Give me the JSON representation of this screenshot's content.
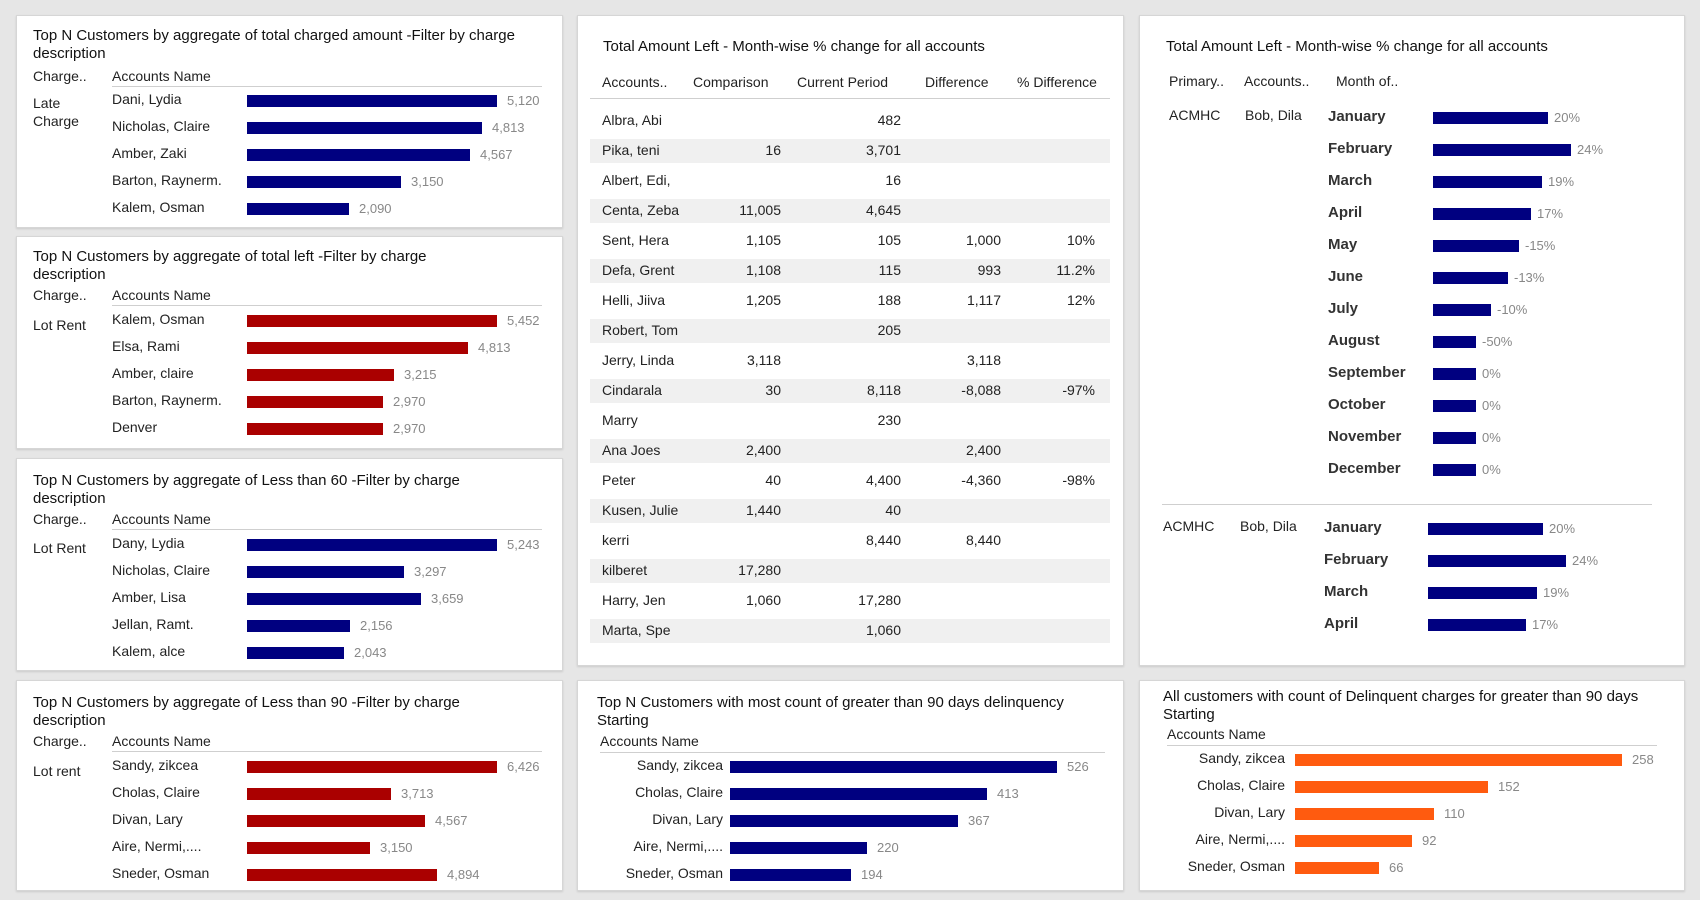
{
  "colors": {
    "navy": "#000080",
    "red": "#aa0000",
    "orange": "#ff5b0f"
  },
  "p1": {
    "title": "Top N Customers by aggregate of total charged amount -Filter by charge description",
    "col1": "Charge..",
    "col2": "Accounts Name",
    "category": "Late Charge",
    "color": "navy",
    "rows": [
      {
        "name": "Dani, Lydia",
        "value": "5,120",
        "v": 5120
      },
      {
        "name": "Nicholas, Claire",
        "value": "4,813",
        "v": 4813
      },
      {
        "name": "Amber, Zaki",
        "value": "4,567",
        "v": 4567
      },
      {
        "name": "Barton, Raynerm.",
        "value": "3,150",
        "v": 3150
      },
      {
        "name": "Kalem, Osman",
        "value": "2,090",
        "v": 2090
      }
    ]
  },
  "p2": {
    "title": "Top N Customers by aggregate of total left -Filter by charge description",
    "col1": "Charge..",
    "col2": "Accounts Name",
    "category": "Lot Rent",
    "color": "red",
    "rows": [
      {
        "name": "Kalem, Osman",
        "value": "5,452",
        "v": 5452
      },
      {
        "name": "Elsa, Rami",
        "value": "4,813",
        "v": 4813
      },
      {
        "name": "Amber, claire",
        "value": "3,215",
        "v": 3215
      },
      {
        "name": "Barton, Raynerm.",
        "value": "2,970",
        "v": 2970
      },
      {
        "name": "Denver",
        "value": "2,970",
        "v": 2970
      }
    ]
  },
  "p3": {
    "title": "Top N Customers by aggregate of Less than 60 -Filter by charge description",
    "col1": "Charge..",
    "col2": "Accounts Name",
    "category": "Lot Rent",
    "color": "navy",
    "rows": [
      {
        "name": "Dany, Lydia",
        "value": "5,243",
        "v": 5243
      },
      {
        "name": "Nicholas, Claire",
        "value": "3,297",
        "v": 3297
      },
      {
        "name": "Amber, Lisa",
        "value": "3,659",
        "v": 3659
      },
      {
        "name": "Jellan, Ramt.",
        "value": "2,156",
        "v": 2156
      },
      {
        "name": "Kalem, alce",
        "value": "2,043",
        "v": 2043
      }
    ]
  },
  "p4": {
    "title": "Top N Customers by aggregate of Less than 90 -Filter by charge description",
    "col1": "Charge..",
    "col2": "Accounts Name",
    "category": "Lot rent",
    "color": "red",
    "rows": [
      {
        "name": "Sandy, zikcea",
        "value": "6,426",
        "v": 6426
      },
      {
        "name": "Cholas, Claire",
        "value": "3,713",
        "v": 3713
      },
      {
        "name": "Divan, Lary",
        "value": "4,567",
        "v": 4567
      },
      {
        "name": "Aire, Nermi,....",
        "value": "3,150",
        "v": 3150
      },
      {
        "name": "Sneder, Osman",
        "value": "4,894",
        "v": 4894
      }
    ]
  },
  "table": {
    "title": "Total Amount Left - Month-wise % change for all accounts",
    "headers": [
      "Accounts..",
      "Comparison",
      "Current Period",
      "Difference",
      "% Difference"
    ],
    "rows": [
      [
        "Albra, Abi",
        "",
        "482",
        "",
        ""
      ],
      [
        "Pika, teni",
        "16",
        "3,701",
        "",
        ""
      ],
      [
        "Albert, Edi,",
        "",
        "16",
        "",
        ""
      ],
      [
        "Centa, Zeba",
        "11,005",
        "4,645",
        "",
        ""
      ],
      [
        "Sent, Hera",
        "1,105",
        "105",
        "1,000",
        "10%"
      ],
      [
        "Defa, Grent",
        "1,108",
        "115",
        "993",
        "11.2%"
      ],
      [
        "Helli, Jiiva",
        "1,205",
        "188",
        "1,117",
        "12%"
      ],
      [
        "Robert, Tom",
        "",
        "205",
        "",
        ""
      ],
      [
        "Jerry, Linda",
        "3,118",
        "",
        "3,118",
        ""
      ],
      [
        "Cindarala",
        "30",
        "8,118",
        "-8,088",
        "-97%"
      ],
      [
        "Marry",
        "",
        "230",
        "",
        ""
      ],
      [
        "Ana Joes",
        "2,400",
        "",
        "2,400",
        ""
      ],
      [
        "Peter",
        "40",
        "4,400",
        "-4,360",
        "-98%"
      ],
      [
        "Kusen, Julie",
        "1,440",
        "40",
        "",
        ""
      ],
      [
        "kerri",
        "",
        "8,440",
        "8,440",
        ""
      ],
      [
        "kilberet",
        "17,280",
        "",
        "",
        ""
      ],
      [
        "Harry, Jen",
        "1,060",
        "17,280",
        "",
        ""
      ],
      [
        "Marta, Spe",
        "",
        "1,060",
        "",
        ""
      ]
    ]
  },
  "monthly": {
    "title": "Total Amount Left - Month-wise % change for all accounts",
    "col1": "Primary..",
    "col2": "Accounts..",
    "col3": "Month of..",
    "group1": {
      "primary": "ACMHC",
      "account": "Bob, Dila",
      "rows": [
        {
          "month": "January",
          "label": "20%",
          "pct": 20
        },
        {
          "month": "February",
          "label": "24%",
          "pct": 24
        },
        {
          "month": "March",
          "label": "19%",
          "pct": 19
        },
        {
          "month": "April",
          "label": "17%",
          "pct": 17
        },
        {
          "month": "May",
          "label": "-15%",
          "pct": -15
        },
        {
          "month": "June",
          "label": "-13%",
          "pct": -13
        },
        {
          "month": "July",
          "label": "-10%",
          "pct": -10
        },
        {
          "month": "August",
          "label": "-50%",
          "pct": -50
        },
        {
          "month": "September",
          "label": "0%",
          "pct": 0
        },
        {
          "month": "October",
          "label": "0%",
          "pct": 0
        },
        {
          "month": "November",
          "label": "0%",
          "pct": 0
        },
        {
          "month": "December",
          "label": "0%",
          "pct": 0
        }
      ]
    },
    "group2": {
      "primary": "ACMHC",
      "account": "Bob, Dila",
      "rows": [
        {
          "month": "January",
          "label": "20%",
          "pct": 20
        },
        {
          "month": "February",
          "label": "24%",
          "pct": 24
        },
        {
          "month": "March",
          "label": "19%",
          "pct": 19
        },
        {
          "month": "April",
          "label": "17%",
          "pct": 17
        }
      ]
    }
  },
  "p5": {
    "title": "Top N Customers with most count of greater than 90 days delinquency Starting",
    "col1": "Accounts Name",
    "color": "navy",
    "rows": [
      {
        "name": "Sandy, zikcea",
        "value": "526",
        "v": 526
      },
      {
        "name": "Cholas, Claire",
        "value": "413",
        "v": 413
      },
      {
        "name": "Divan, Lary",
        "value": "367",
        "v": 367
      },
      {
        "name": "Aire, Nermi,....",
        "value": "220",
        "v": 220
      },
      {
        "name": "Sneder, Osman",
        "value": "194",
        "v": 194
      }
    ]
  },
  "p6": {
    "title": "All customers  with count of  Delinquent  charges for greater than 90 days Starting",
    "col1": "Accounts Name",
    "color": "orange",
    "rows": [
      {
        "name": "Sandy, zikcea",
        "value": "258",
        "v": 258
      },
      {
        "name": "Cholas, Claire",
        "value": "152",
        "v": 152
      },
      {
        "name": "Divan, Lary",
        "value": "110",
        "v": 110
      },
      {
        "name": "Aire, Nermi,....",
        "value": "92",
        "v": 92
      },
      {
        "name": "Sneder, Osman",
        "value": "66",
        "v": 66
      }
    ]
  },
  "chart_data": [
    {
      "type": "bar",
      "title": "Top N Customers by aggregate of total charged amount -Filter by charge description",
      "categories": [
        "Dani, Lydia",
        "Nicholas, Claire",
        "Amber, Zaki",
        "Barton, Raynerm.",
        "Kalem, Osman"
      ],
      "values": [
        5120,
        4813,
        4567,
        3150,
        2090
      ]
    },
    {
      "type": "bar",
      "title": "Top N Customers by aggregate of total left -Filter by charge description",
      "categories": [
        "Kalem, Osman",
        "Elsa, Rami",
        "Amber, claire",
        "Barton, Raynerm.",
        "Denver"
      ],
      "values": [
        5452,
        4813,
        3215,
        2970,
        2970
      ]
    },
    {
      "type": "bar",
      "title": "Top N Customers by aggregate of Less than 60 -Filter by charge description",
      "categories": [
        "Dany, Lydia",
        "Nicholas, Claire",
        "Amber, Lisa",
        "Jellan, Ramt.",
        "Kalem, alce"
      ],
      "values": [
        5243,
        3297,
        3659,
        2156,
        2043
      ]
    },
    {
      "type": "bar",
      "title": "Top N Customers by aggregate of Less than 90 -Filter by charge description",
      "categories": [
        "Sandy, zikcea",
        "Cholas, Claire",
        "Divan, Lary",
        "Aire, Nermi,....",
        "Sneder, Osman"
      ],
      "values": [
        6426,
        3713,
        4567,
        3150,
        4894
      ]
    },
    {
      "type": "table",
      "title": "Total Amount Left - Month-wise % change for all accounts"
    },
    {
      "type": "bar",
      "title": "Total Amount Left - Month-wise % change for all accounts",
      "categories": [
        "January",
        "February",
        "March",
        "April",
        "May",
        "June",
        "July",
        "August",
        "September",
        "October",
        "November",
        "December"
      ],
      "values": [
        20,
        24,
        19,
        17,
        -15,
        -13,
        -10,
        -50,
        0,
        0,
        0,
        0
      ]
    },
    {
      "type": "bar",
      "title": "Top N Customers with most count of greater than 90 days delinquency Starting",
      "categories": [
        "Sandy, zikcea",
        "Cholas, Claire",
        "Divan, Lary",
        "Aire, Nermi,....",
        "Sneder, Osman"
      ],
      "values": [
        526,
        413,
        367,
        220,
        194
      ]
    },
    {
      "type": "bar",
      "title": "All customers  with count of  Delinquent  charges for greater than 90 days Starting",
      "categories": [
        "Sandy, zikcea",
        "Cholas, Claire",
        "Divan, Lary",
        "Aire, Nermi,....",
        "Sneder, Osman"
      ],
      "values": [
        258,
        152,
        110,
        92,
        66
      ]
    }
  ]
}
